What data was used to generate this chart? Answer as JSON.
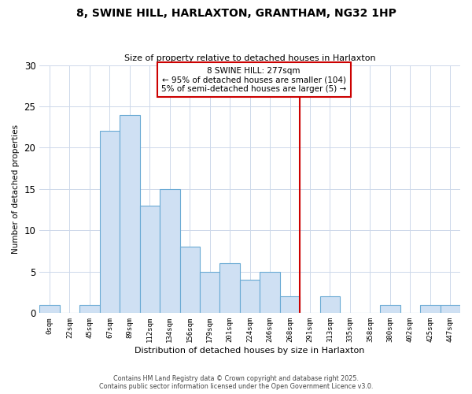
{
  "title": "8, SWINE HILL, HARLAXTON, GRANTHAM, NG32 1HP",
  "subtitle": "Size of property relative to detached houses in Harlaxton",
  "xlabel": "Distribution of detached houses by size in Harlaxton",
  "ylabel": "Number of detached properties",
  "bin_labels": [
    "0sqm",
    "22sqm",
    "45sqm",
    "67sqm",
    "89sqm",
    "112sqm",
    "134sqm",
    "156sqm",
    "179sqm",
    "201sqm",
    "224sqm",
    "246sqm",
    "268sqm",
    "291sqm",
    "313sqm",
    "335sqm",
    "358sqm",
    "380sqm",
    "402sqm",
    "425sqm",
    "447sqm"
  ],
  "bar_heights": [
    1,
    0,
    1,
    22,
    24,
    13,
    15,
    8,
    5,
    6,
    4,
    5,
    2,
    0,
    2,
    0,
    0,
    1,
    0,
    1,
    1
  ],
  "bar_color": "#cfe0f3",
  "bar_edge_color": "#6aaad4",
  "vline_x_bin": 12,
  "vline_color": "#cc0000",
  "annotation_title": "8 SWINE HILL: 277sqm",
  "annotation_line1": "← 95% of detached houses are smaller (104)",
  "annotation_line2": "5% of semi-detached houses are larger (5) →",
  "annotation_box_edge": "#cc0000",
  "ylim": [
    0,
    30
  ],
  "yticks": [
    0,
    5,
    10,
    15,
    20,
    25,
    30
  ],
  "footnote1": "Contains HM Land Registry data © Crown copyright and database right 2025.",
  "footnote2": "Contains public sector information licensed under the Open Government Licence v3.0.",
  "background_color": "#ffffff",
  "grid_color": "#cdd8ea"
}
